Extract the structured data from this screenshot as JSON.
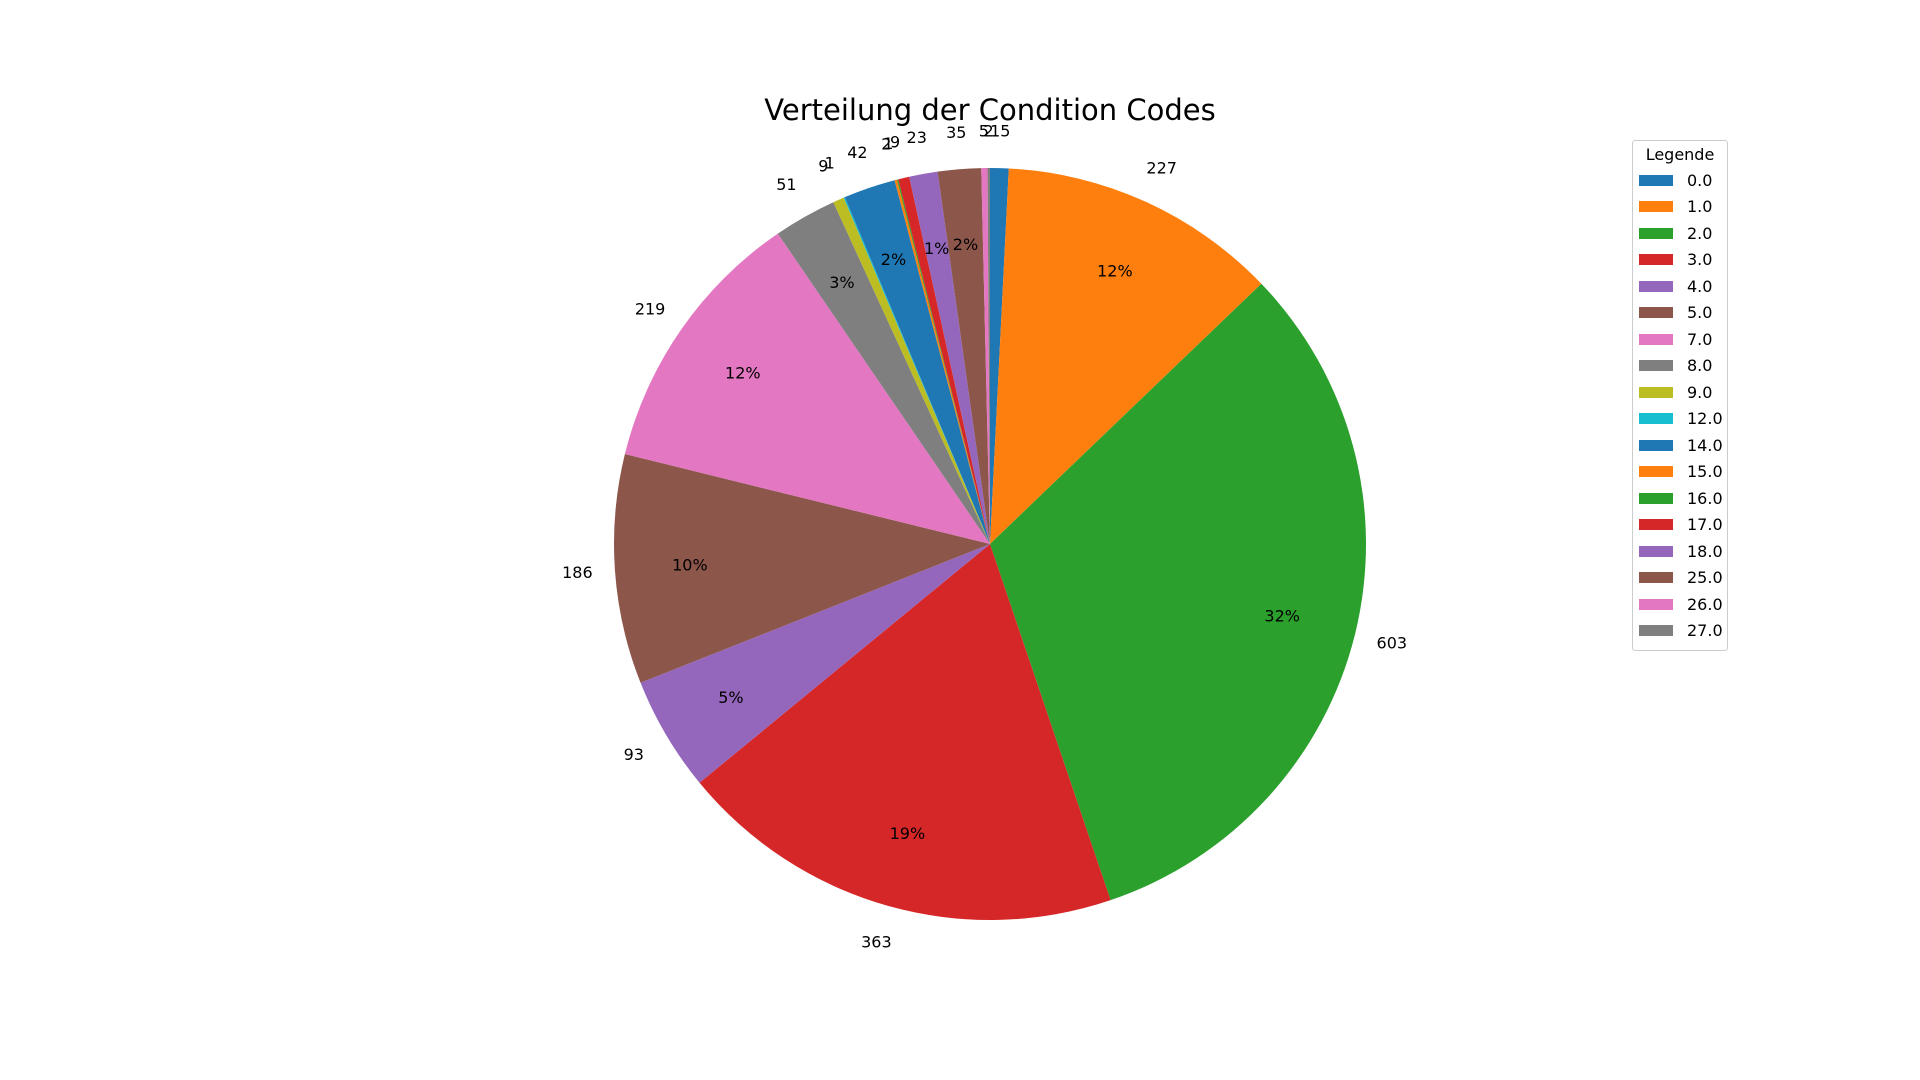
{
  "chart_data": {
    "type": "pie",
    "title": "Verteilung der Condition Codes",
    "legend_title": "Legende",
    "legend_placement": "right",
    "start_angle_deg": 90,
    "direction": "clockwise",
    "pct_min_shown": 1,
    "slices": [
      {
        "label": "0.0",
        "value": 15,
        "pct_label": "",
        "color": "#1f77b4"
      },
      {
        "label": "1.0",
        "value": 227,
        "pct_label": "12%",
        "color": "#ff7f0e"
      },
      {
        "label": "2.0",
        "value": 603,
        "pct_label": "32%",
        "color": "#2ca02c"
      },
      {
        "label": "3.0",
        "value": 363,
        "pct_label": "19%",
        "color": "#d62728"
      },
      {
        "label": "4.0",
        "value": 93,
        "pct_label": "5%",
        "color": "#9467bd"
      },
      {
        "label": "5.0",
        "value": 186,
        "pct_label": "10%",
        "color": "#8c564b"
      },
      {
        "label": "7.0",
        "value": 219,
        "pct_label": "12%",
        "color": "#e377c2"
      },
      {
        "label": "8.0",
        "value": 51,
        "pct_label": "3%",
        "color": "#7f7f7f"
      },
      {
        "label": "9.0",
        "value": 9,
        "pct_label": "",
        "color": "#bcbd22"
      },
      {
        "label": "12.0",
        "value": 1,
        "pct_label": "",
        "color": "#17becf"
      },
      {
        "label": "14.0",
        "value": 42,
        "pct_label": "2%",
        "color": "#1f77b4"
      },
      {
        "label": "15.0",
        "value": 2,
        "pct_label": "",
        "color": "#ff7f0e"
      },
      {
        "label": "16.0",
        "value": 1,
        "pct_label": "",
        "color": "#2ca02c"
      },
      {
        "label": "17.0",
        "value": 9,
        "pct_label": "",
        "color": "#d62728"
      },
      {
        "label": "18.0",
        "value": 23,
        "pct_label": "1%",
        "color": "#9467bd"
      },
      {
        "label": "25.0",
        "value": 35,
        "pct_label": "2%",
        "color": "#8c564b"
      },
      {
        "label": "26.0",
        "value": 5,
        "pct_label": "",
        "color": "#e377c2"
      },
      {
        "label": "27.0",
        "value": 2,
        "pct_label": "",
        "color": "#7f7f7f"
      }
    ]
  }
}
